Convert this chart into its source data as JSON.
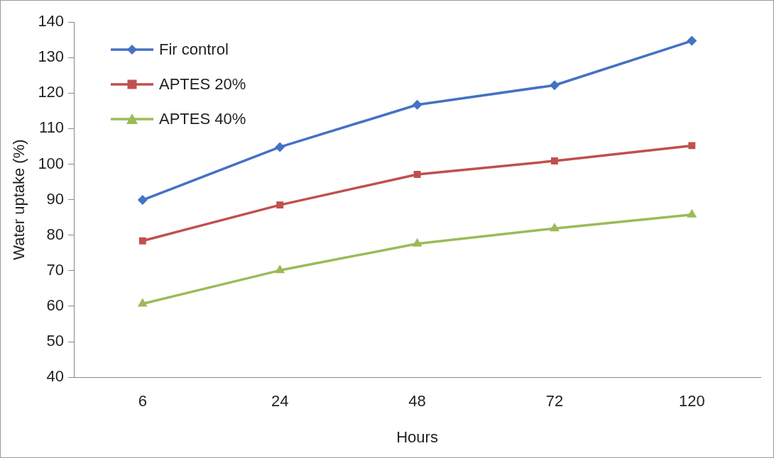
{
  "chart_data": {
    "type": "line",
    "xlabel": "Hours",
    "ylabel": "Water uptake (%)",
    "categories": [
      "6",
      "24",
      "48",
      "72",
      "120"
    ],
    "series": [
      {
        "name": "Fir control",
        "color": "#4472c4",
        "marker": "diamond",
        "values": [
          89.9,
          104.8,
          116.7,
          122.2,
          134.7
        ]
      },
      {
        "name": "APTES 20%",
        "color": "#c0504d",
        "marker": "square",
        "values": [
          78.4,
          88.5,
          97.1,
          100.9,
          105.2
        ]
      },
      {
        "name": "APTES 40%",
        "color": "#9bbb59",
        "marker": "triangle",
        "values": [
          60.7,
          70.1,
          77.6,
          81.9,
          85.8
        ]
      }
    ],
    "ylim": [
      40,
      140
    ],
    "yticks": [
      40,
      50,
      60,
      70,
      80,
      90,
      100,
      110,
      120,
      130,
      140
    ],
    "grid": false,
    "legend": "top left",
    "line_style": "solid"
  }
}
